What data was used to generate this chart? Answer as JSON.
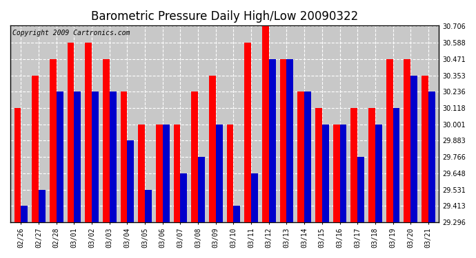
{
  "title": "Barometric Pressure Daily High/Low 20090322",
  "copyright": "Copyright 2009 Cartronics.com",
  "dates": [
    "02/26",
    "02/27",
    "02/28",
    "03/01",
    "03/02",
    "03/03",
    "03/04",
    "03/05",
    "03/06",
    "03/07",
    "03/08",
    "03/09",
    "03/10",
    "03/11",
    "03/12",
    "03/13",
    "03/14",
    "03/15",
    "03/16",
    "03/17",
    "03/18",
    "03/19",
    "03/20",
    "03/21"
  ],
  "highs": [
    30.118,
    30.353,
    30.471,
    30.588,
    30.588,
    30.471,
    30.236,
    30.001,
    30.001,
    30.001,
    30.236,
    30.353,
    30.001,
    30.588,
    30.706,
    30.471,
    30.236,
    30.118,
    30.001,
    30.118,
    30.118,
    30.471,
    30.471,
    30.353
  ],
  "lows": [
    29.413,
    29.531,
    30.236,
    30.236,
    30.236,
    30.236,
    29.883,
    29.531,
    30.001,
    29.648,
    29.766,
    30.001,
    29.413,
    29.648,
    30.471,
    30.471,
    30.236,
    30.001,
    30.001,
    29.766,
    30.001,
    30.118,
    30.353,
    30.236
  ],
  "high_color": "#ff0000",
  "low_color": "#0000cc",
  "bg_color": "#ffffff",
  "plot_bg_color": "#c8c8c8",
  "grid_color": "#ffffff",
  "ylim_min": 29.296,
  "ylim_max": 30.706,
  "yticks": [
    29.296,
    29.413,
    29.531,
    29.648,
    29.766,
    29.883,
    30.001,
    30.118,
    30.236,
    30.353,
    30.471,
    30.588,
    30.706
  ],
  "title_fontsize": 12,
  "copyright_fontsize": 7
}
